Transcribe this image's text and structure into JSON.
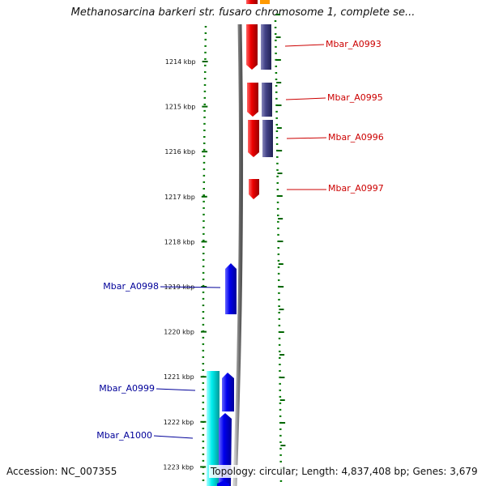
{
  "title": "Methanosarcina barkeri str. fusaro chromosome 1, complete se...",
  "ruler": {
    "ticks": [
      "1214 kbp",
      "1215 kbp",
      "1216 kbp",
      "1217 kbp",
      "1218 kbp",
      "1219 kbp",
      "1220 kbp",
      "1221 kbp",
      "1222 kbp",
      "1223 kbp"
    ]
  },
  "genes_right": [
    "Mbar_A0993",
    "Mbar_A0995",
    "Mbar_A0996",
    "Mbar_A0997"
  ],
  "genes_left": [
    "Mbar_A0998",
    "Mbar_A0999",
    "Mbar_A1000"
  ],
  "footer": {
    "accession": "Accession: NC_007355",
    "topology": "Topology: circular; Length: 4,837,408 bp; Genes: 3,679"
  },
  "colors": {
    "forward_gene": "#ee0000",
    "forward_cds": "#444488",
    "reverse_gene": "#0000ee",
    "reverse_cds": "#00eeee",
    "ruler": "#006600",
    "backbone": "#888888",
    "label_right": "#cc0000",
    "label_left": "#000099"
  }
}
